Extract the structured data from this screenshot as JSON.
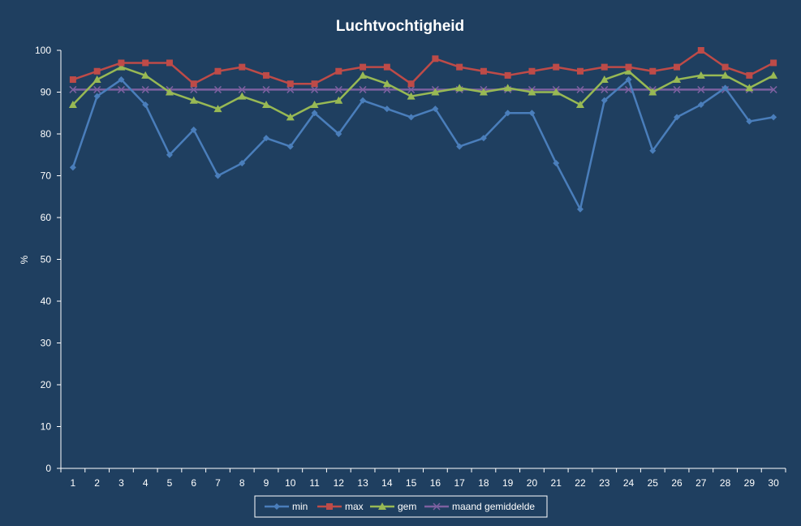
{
  "chart_data": {
    "type": "line",
    "title": "Luchtvochtigheid",
    "xlabel": "",
    "ylabel": "%",
    "ylim": [
      0,
      100
    ],
    "y_ticks": [
      0,
      10,
      20,
      30,
      40,
      50,
      60,
      70,
      80,
      90,
      100
    ],
    "grid": false,
    "legend_position": "bottom",
    "background_color": "#1f3f60",
    "categories": [
      "1",
      "2",
      "3",
      "4",
      "5",
      "6",
      "7",
      "8",
      "9",
      "10",
      "11",
      "12",
      "13",
      "14",
      "15",
      "16",
      "17",
      "18",
      "19",
      "20",
      "21",
      "22",
      "23",
      "24",
      "25",
      "26",
      "27",
      "28",
      "29",
      "30"
    ],
    "series": [
      {
        "name": "min",
        "color": "#4a7ebb",
        "marker": "diamond",
        "values": [
          72,
          89,
          93,
          87,
          75,
          81,
          70,
          73,
          79,
          77,
          85,
          80,
          88,
          86,
          84,
          86,
          77,
          79,
          85,
          85,
          73,
          62,
          88,
          93,
          76,
          84,
          87,
          91,
          83,
          84
        ]
      },
      {
        "name": "max",
        "color": "#be4b48",
        "marker": "square",
        "values": [
          93,
          95,
          97,
          97,
          97,
          92,
          95,
          96,
          94,
          92,
          92,
          95,
          96,
          96,
          92,
          98,
          96,
          95,
          94,
          95,
          96,
          95,
          96,
          96,
          95,
          96,
          100,
          96,
          94,
          97
        ]
      },
      {
        "name": "gem",
        "color": "#98b954",
        "marker": "triangle",
        "values": [
          87,
          93,
          96,
          94,
          90,
          88,
          86,
          89,
          87,
          84,
          87,
          88,
          94,
          92,
          89,
          90,
          91,
          90,
          91,
          90,
          90,
          87,
          93,
          95,
          90,
          93,
          94,
          94,
          91,
          94
        ]
      },
      {
        "name": "maand gemiddelde",
        "color": "#7d60a0",
        "marker": "x",
        "values": [
          90.6,
          90.6,
          90.6,
          90.6,
          90.6,
          90.6,
          90.6,
          90.6,
          90.6,
          90.6,
          90.6,
          90.6,
          90.6,
          90.6,
          90.6,
          90.6,
          90.6,
          90.6,
          90.6,
          90.6,
          90.6,
          90.6,
          90.6,
          90.6,
          90.6,
          90.6,
          90.6,
          90.6,
          90.6,
          90.6
        ]
      }
    ]
  }
}
